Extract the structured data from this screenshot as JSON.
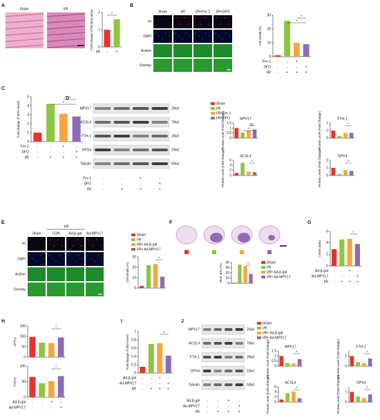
{
  "panels": [
    "A",
    "B",
    "C",
    "D",
    "E",
    "F",
    "G",
    "H",
    "I",
    "J"
  ],
  "figures": {
    "a_images": {
      "labels": [
        "Sham",
        "I/R"
      ]
    },
    "b_images": {
      "columns": [
        "Sham",
        "I/R",
        "I/R+Fer-1",
        "I/R+DFO"
      ],
      "rows": [
        "PI",
        "DAPI",
        "Actinin",
        "Overlay"
      ]
    },
    "d_blot": {
      "rows": [
        "MPV17",
        "ACSL4",
        "FTH-1",
        "GPX4",
        "Tubulin"
      ],
      "sizes": [
        "25kd",
        "70kd",
        "25kd",
        "15kd",
        "50kd"
      ],
      "conditions": [
        {
          "label": "Fer-1",
          "signs": [
            "-",
            "-",
            "+",
            "-"
          ]
        },
        {
          "label": "DFO",
          "signs": [
            "-",
            "-",
            "-",
            "+"
          ]
        },
        {
          "label": "I/R",
          "signs": [
            "-",
            "+",
            "+",
            "+"
          ]
        }
      ]
    },
    "e_images": {
      "group": "I/R",
      "columns": [
        "Sham",
        "CON",
        "Ad-β-gal",
        "Ad-MPV17"
      ],
      "rows": [
        "PI",
        "DAPI",
        "Actinin",
        "Overlay"
      ]
    },
    "j_blot": {
      "rows": [
        "MPV17",
        "ACSL4",
        "FTH-1",
        "GPX4",
        "Tubulin"
      ],
      "sizes": [
        "25kd",
        "70kd",
        "25kd",
        "15kd",
        "50kd"
      ],
      "conditions": [
        {
          "label": "Ad-β-gal",
          "signs": [
            "-",
            "-",
            "+",
            "-"
          ]
        },
        {
          "label": "Ad-MPV17",
          "signs": [
            "-",
            "-",
            "-",
            "+"
          ]
        },
        {
          "label": "I/R",
          "signs": [
            "-",
            "+",
            "+",
            "+"
          ]
        }
      ]
    }
  },
  "chart_data": [
    {
      "type": "bar",
      "ylabel": "Fold change of the blue areas",
      "values": [
        1.0,
        1.6
      ],
      "colors": [
        "#e8332a",
        "#8dc63f"
      ],
      "ylim": [
        0,
        2
      ],
      "yticks": [
        0,
        1,
        2
      ],
      "annotations": [
        "*"
      ],
      "conditions": [
        {
          "label": "I/R",
          "signs": [
            "-",
            "+"
          ]
        }
      ]
    },
    {
      "type": "bar",
      "ylabel": "Cell Death (%)",
      "values": [
        1,
        26,
        10,
        9
      ],
      "colors": [
        "#e8332a",
        "#8dc63f",
        "#f7a541",
        "#8e6bb5"
      ],
      "ylim": [
        0,
        30
      ],
      "yticks": [
        0,
        10,
        20,
        30
      ],
      "annotations": [
        "*",
        "*"
      ],
      "conditions": [
        {
          "label": "Fer-1",
          "signs": [
            "-",
            "-",
            "+",
            "-"
          ]
        },
        {
          "label": "DFO",
          "signs": [
            "-",
            "-",
            "-",
            "+"
          ]
        },
        {
          "label": "I/R",
          "signs": [
            "-",
            "+",
            "+",
            "+"
          ]
        }
      ]
    },
    {
      "type": "bar",
      "ylabel": "Fold change of MDA levels",
      "values": [
        1,
        4.2,
        3.1,
        2.8
      ],
      "colors": [
        "#e8332a",
        "#8dc63f",
        "#f7a541",
        "#8e6bb5"
      ],
      "ylim": [
        0,
        5
      ],
      "yticks": [
        0,
        1,
        2,
        3,
        4,
        5
      ],
      "annotations": [
        "*",
        "*"
      ],
      "conditions": [
        {
          "label": "Fer-1",
          "signs": [
            "-",
            "-",
            "+",
            "-"
          ]
        },
        {
          "label": "DFO",
          "signs": [
            "-",
            "-",
            "-",
            "+"
          ]
        },
        {
          "label": "I/R",
          "signs": [
            "-",
            "+",
            "+",
            "+"
          ]
        }
      ]
    },
    {
      "type": "bar",
      "title": "MPV17",
      "ylabel": "Protein Level (Fold Change)",
      "categories": [
        "Sham",
        "I/R",
        "I/R+Fer-1",
        "I/R+DFO"
      ],
      "legend": true,
      "values": [
        1,
        0.55,
        0.75,
        0.85
      ],
      "colors": [
        "#e8332a",
        "#8dc63f",
        "#f7a541",
        "#8e6bb5"
      ],
      "ylim": [
        0,
        1.5
      ],
      "yticks": [
        0,
        0.5,
        1,
        1.5
      ],
      "annotations": [
        "ns",
        "*"
      ]
    },
    {
      "type": "bar",
      "title": "FTH-1",
      "ylabel": "Protein Level (Fold Change)",
      "values": [
        1,
        0.3,
        0.7,
        0.7
      ],
      "colors": [
        "#e8332a",
        "#8dc63f",
        "#f7a541",
        "#8e6bb5"
      ],
      "ylim": [
        0,
        2
      ],
      "yticks": [
        0,
        1,
        2
      ],
      "annotations": [
        "*"
      ]
    },
    {
      "type": "bar",
      "title": "ACSL4",
      "ylabel": "Protein Level (Fold Change)",
      "values": [
        1,
        5,
        1.5,
        1.3
      ],
      "colors": [
        "#e8332a",
        "#8dc63f",
        "#f7a541",
        "#8e6bb5"
      ],
      "ylim": [
        0,
        6
      ],
      "yticks": [
        0,
        2,
        4,
        6
      ],
      "annotations": [
        "*"
      ]
    },
    {
      "type": "bar",
      "title": "GPX4",
      "ylabel": "Protein Level (Fold Change)",
      "values": [
        1,
        0.2,
        0.7,
        0.6
      ],
      "colors": [
        "#e8332a",
        "#8dc63f",
        "#f7a541",
        "#8e6bb5"
      ],
      "ylim": [
        0,
        2
      ],
      "yticks": [
        0,
        1,
        2
      ],
      "annotations": [
        "*"
      ]
    },
    {
      "type": "bar",
      "ylabel": "Cell Death (%)",
      "categories": [
        "Sham",
        "I/R",
        "I/R+ Ad-β-gal",
        "I/R+ Ad-MPV17"
      ],
      "legend": true,
      "values": [
        2,
        22,
        23,
        11
      ],
      "colors": [
        "#e8332a",
        "#8dc63f",
        "#f7a541",
        "#8e6bb5"
      ],
      "ylim": [
        0,
        30
      ],
      "yticks": [
        0,
        10,
        20,
        30
      ],
      "annotations": [
        "*"
      ]
    },
    {
      "type": "bar",
      "ylabel": "Blue area (%)",
      "categories": [
        "Sham",
        "I/R",
        "I/R+ Ad-β-gal",
        "I/R+ Ad-MPV17"
      ],
      "legend": true,
      "values": [
        1,
        36,
        33,
        18
      ],
      "colors": [
        "#e8332a",
        "#8dc63f",
        "#f7a541",
        "#8e6bb5"
      ],
      "ylim": [
        0,
        40
      ],
      "yticks": [
        0,
        10,
        20,
        30,
        40
      ],
      "annotations": [
        "*"
      ]
    },
    {
      "type": "bar",
      "ylabel": "LVIDs (mm)",
      "values": [
        2.9,
        4.6,
        4.7,
        3.8
      ],
      "colors": [
        "#e8332a",
        "#8dc63f",
        "#f7a541",
        "#8e6bb5"
      ],
      "ylim": [
        0,
        6
      ],
      "yticks": [
        0,
        2,
        4,
        6
      ],
      "annotations": [
        "*"
      ],
      "conditions": [
        {
          "label": "Ad-β-gal",
          "signs": [
            "-",
            "-",
            "+",
            "-"
          ]
        },
        {
          "label": "Ad-MPV17",
          "signs": [
            "-",
            "-",
            "-",
            "+"
          ]
        },
        {
          "label": "I/R",
          "signs": [
            "-",
            "+",
            "+",
            "+"
          ]
        }
      ]
    },
    {
      "type": "bar",
      "ylabel": "EF(%)",
      "values": [
        98,
        70,
        68,
        95
      ],
      "colors": [
        "#e8332a",
        "#8dc63f",
        "#f7a541",
        "#8e6bb5"
      ],
      "ylim": [
        0,
        150
      ],
      "yticks": [
        0,
        50,
        100,
        150
      ],
      "annotations": [
        "*"
      ]
    },
    {
      "type": "bar",
      "ylabel": "FS(%)",
      "values": [
        65,
        45,
        52,
        68
      ],
      "colors": [
        "#e8332a",
        "#8dc63f",
        "#f7a541",
        "#8e6bb5"
      ],
      "ylim": [
        0,
        100
      ],
      "yticks": [
        0,
        50,
        100
      ],
      "annotations": [
        "*"
      ],
      "conditions": [
        {
          "label": "Ad-β-gal",
          "signs": [
            "-",
            "-",
            "+",
            "-"
          ]
        },
        {
          "label": "Ad-MPV17",
          "signs": [
            "-",
            "-",
            "-",
            "+"
          ]
        }
      ]
    },
    {
      "type": "bar",
      "ylabel": "Fold change of MDA level",
      "values": [
        0.15,
        0.7,
        0.72,
        0.42
      ],
      "colors": [
        "#e8332a",
        "#8dc63f",
        "#f7a541",
        "#8e6bb5"
      ],
      "ylim": [
        0,
        1
      ],
      "yticks": [
        0,
        0.2,
        0.4,
        0.6,
        0.8,
        1
      ],
      "annotations": [
        "*"
      ],
      "conditions": [
        {
          "label": "Ad-β-gal",
          "signs": [
            "-",
            "-",
            "+",
            "-"
          ]
        },
        {
          "label": "Ad-MPV17",
          "signs": [
            "-",
            "-",
            "-",
            "+"
          ]
        },
        {
          "label": "I/R",
          "signs": [
            "-",
            "+",
            "+",
            "+"
          ]
        }
      ]
    },
    {
      "type": "bar",
      "title": "MPV17",
      "ylabel": "Protein Level (Fold Change)",
      "categories": [
        "Sham",
        "I/R",
        "I/R+ Ad-β-gal",
        "I/R+ Ad-MPV17"
      ],
      "legend": true,
      "values": [
        1,
        0.3,
        0.25,
        0.7
      ],
      "colors": [
        "#e8332a",
        "#8dc63f",
        "#f7a541",
        "#8e6bb5"
      ],
      "ylim": [
        0,
        1.5
      ],
      "yticks": [
        0,
        0.5,
        1,
        1.5
      ],
      "annotations": [
        "*"
      ]
    },
    {
      "type": "bar",
      "title": "FTH-1",
      "ylabel": "Protein Level (Fold Change)",
      "values": [
        1,
        0.4,
        0.3,
        0.75
      ],
      "colors": [
        "#e8332a",
        "#8dc63f",
        "#f7a541",
        "#8e6bb5"
      ],
      "ylim": [
        0,
        1.5
      ],
      "yticks": [
        0,
        1
      ],
      "annotations": [
        "*"
      ]
    },
    {
      "type": "bar",
      "title": "ACSL4",
      "ylabel": "Protein Level (Fold Change)",
      "values": [
        1,
        3.5,
        4.2,
        1.5
      ],
      "colors": [
        "#e8332a",
        "#8dc63f",
        "#f7a541",
        "#8e6bb5"
      ],
      "ylim": [
        0,
        6
      ],
      "yticks": [
        0,
        2,
        4,
        6
      ],
      "annotations": [
        "*"
      ]
    },
    {
      "type": "bar",
      "title": "GPX4",
      "ylabel": "Protein Level (Fold Change)",
      "values": [
        1,
        0.55,
        0.4,
        0.75
      ],
      "colors": [
        "#e8332a",
        "#8dc63f",
        "#f7a541",
        "#8e6bb5"
      ],
      "ylim": [
        0,
        1.5
      ],
      "yticks": [
        0,
        1
      ],
      "annotations": [
        "*"
      ]
    }
  ]
}
